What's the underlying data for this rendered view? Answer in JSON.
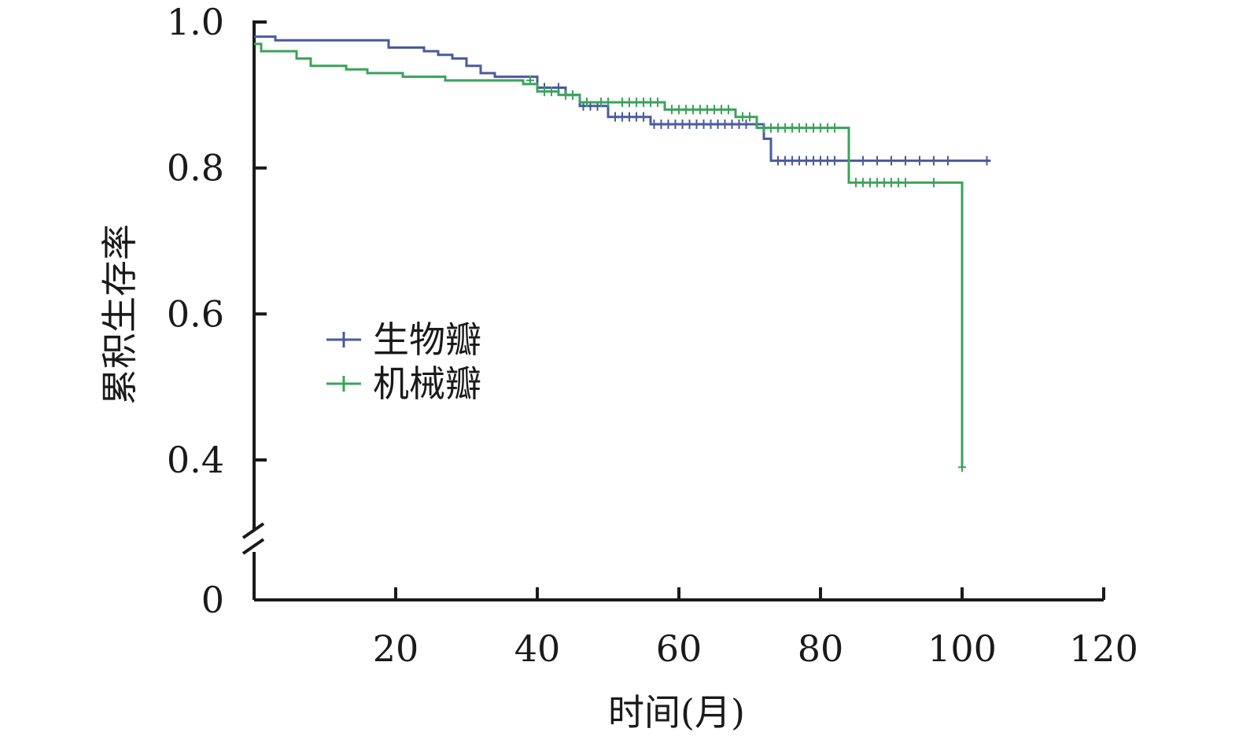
{
  "chart_data": {
    "type": "line",
    "title": "",
    "xlabel": "时间(月)",
    "ylabel": "累积生存率",
    "xlim": [
      0,
      120
    ],
    "ylim": [
      0,
      1.0
    ],
    "axis_break": true,
    "x_ticks": [
      20,
      40,
      60,
      80,
      100,
      120
    ],
    "x_tick_labels": [
      "20",
      "40",
      "60",
      "80",
      "100",
      "120"
    ],
    "y_ticks": [
      0,
      0.4,
      0.6,
      0.8,
      1.0
    ],
    "y_tick_labels": [
      "0",
      "0.4",
      "0.6",
      "0.8",
      "1.0"
    ],
    "grid": false,
    "legend_position": "center-left",
    "series": [
      {
        "name": "生物瓣",
        "color": "#4a5a9e",
        "steps": [
          [
            0,
            0.98
          ],
          [
            3,
            0.98
          ],
          [
            3,
            0.975
          ],
          [
            19,
            0.975
          ],
          [
            19,
            0.965
          ],
          [
            24,
            0.965
          ],
          [
            24,
            0.96
          ],
          [
            26,
            0.96
          ],
          [
            26,
            0.955
          ],
          [
            28,
            0.955
          ],
          [
            28,
            0.95
          ],
          [
            30,
            0.95
          ],
          [
            30,
            0.94
          ],
          [
            32,
            0.94
          ],
          [
            32,
            0.93
          ],
          [
            34,
            0.93
          ],
          [
            34,
            0.925
          ],
          [
            40,
            0.925
          ],
          [
            40,
            0.91
          ],
          [
            44,
            0.91
          ],
          [
            44,
            0.9
          ],
          [
            46,
            0.9
          ],
          [
            46,
            0.885
          ],
          [
            50,
            0.885
          ],
          [
            50,
            0.87
          ],
          [
            56,
            0.87
          ],
          [
            56,
            0.86
          ],
          [
            72,
            0.86
          ],
          [
            72,
            0.84
          ],
          [
            73,
            0.84
          ],
          [
            73,
            0.81
          ],
          [
            104,
            0.81
          ]
        ],
        "censored": [
          [
            41,
            0.91
          ],
          [
            43,
            0.91
          ],
          [
            45,
            0.9
          ],
          [
            46.5,
            0.885
          ],
          [
            47.5,
            0.885
          ],
          [
            48.5,
            0.885
          ],
          [
            51,
            0.87
          ],
          [
            52,
            0.87
          ],
          [
            53,
            0.87
          ],
          [
            54,
            0.87
          ],
          [
            55,
            0.87
          ],
          [
            56.5,
            0.86
          ],
          [
            57.5,
            0.86
          ],
          [
            58.5,
            0.86
          ],
          [
            59.5,
            0.86
          ],
          [
            60.5,
            0.86
          ],
          [
            61.5,
            0.86
          ],
          [
            62.5,
            0.86
          ],
          [
            63.5,
            0.86
          ],
          [
            64.5,
            0.86
          ],
          [
            65.5,
            0.86
          ],
          [
            66.5,
            0.86
          ],
          [
            67.5,
            0.86
          ],
          [
            68.5,
            0.86
          ],
          [
            69.5,
            0.86
          ],
          [
            74,
            0.81
          ],
          [
            75,
            0.81
          ],
          [
            76,
            0.81
          ],
          [
            77,
            0.81
          ],
          [
            78,
            0.81
          ],
          [
            79,
            0.81
          ],
          [
            80,
            0.81
          ],
          [
            81,
            0.81
          ],
          [
            82,
            0.81
          ],
          [
            84,
            0.81
          ],
          [
            86,
            0.81
          ],
          [
            88,
            0.81
          ],
          [
            90,
            0.81
          ],
          [
            92,
            0.81
          ],
          [
            94,
            0.81
          ],
          [
            96,
            0.81
          ],
          [
            98,
            0.81
          ],
          [
            103.5,
            0.81
          ]
        ]
      },
      {
        "name": "机械瓣",
        "color": "#3aa35a",
        "steps": [
          [
            0,
            0.97
          ],
          [
            1,
            0.97
          ],
          [
            1,
            0.96
          ],
          [
            6,
            0.96
          ],
          [
            6,
            0.95
          ],
          [
            8,
            0.95
          ],
          [
            8,
            0.94
          ],
          [
            13,
            0.94
          ],
          [
            13,
            0.935
          ],
          [
            16,
            0.935
          ],
          [
            16,
            0.93
          ],
          [
            21,
            0.93
          ],
          [
            21,
            0.925
          ],
          [
            27,
            0.925
          ],
          [
            27,
            0.92
          ],
          [
            38,
            0.92
          ],
          [
            38,
            0.915
          ],
          [
            40,
            0.915
          ],
          [
            40,
            0.905
          ],
          [
            43,
            0.905
          ],
          [
            43,
            0.9
          ],
          [
            46,
            0.9
          ],
          [
            46,
            0.89
          ],
          [
            48,
            0.89
          ],
          [
            48,
            0.89
          ],
          [
            58,
            0.89
          ],
          [
            58,
            0.88
          ],
          [
            68,
            0.88
          ],
          [
            68,
            0.87
          ],
          [
            71,
            0.87
          ],
          [
            71,
            0.855
          ],
          [
            84,
            0.855
          ],
          [
            84,
            0.78
          ],
          [
            100,
            0.78
          ],
          [
            100,
            0.39
          ]
        ],
        "censored": [
          [
            39,
            0.92
          ],
          [
            41,
            0.905
          ],
          [
            42,
            0.905
          ],
          [
            44,
            0.9
          ],
          [
            45,
            0.9
          ],
          [
            47,
            0.89
          ],
          [
            49,
            0.89
          ],
          [
            50,
            0.89
          ],
          [
            52,
            0.89
          ],
          [
            53,
            0.89
          ],
          [
            54,
            0.89
          ],
          [
            55,
            0.89
          ],
          [
            56,
            0.89
          ],
          [
            57,
            0.89
          ],
          [
            59,
            0.88
          ],
          [
            60,
            0.88
          ],
          [
            61,
            0.88
          ],
          [
            62,
            0.88
          ],
          [
            63,
            0.88
          ],
          [
            64,
            0.88
          ],
          [
            65,
            0.88
          ],
          [
            66,
            0.88
          ],
          [
            67,
            0.88
          ],
          [
            69,
            0.87
          ],
          [
            70,
            0.87
          ],
          [
            72,
            0.855
          ],
          [
            73,
            0.855
          ],
          [
            74,
            0.855
          ],
          [
            75,
            0.855
          ],
          [
            76,
            0.855
          ],
          [
            77,
            0.855
          ],
          [
            78,
            0.855
          ],
          [
            79,
            0.855
          ],
          [
            80,
            0.855
          ],
          [
            81,
            0.855
          ],
          [
            82,
            0.855
          ],
          [
            85,
            0.78
          ],
          [
            86,
            0.78
          ],
          [
            87,
            0.78
          ],
          [
            88,
            0.78
          ],
          [
            89,
            0.78
          ],
          [
            90,
            0.78
          ],
          [
            91,
            0.78
          ],
          [
            92,
            0.78
          ],
          [
            96,
            0.78
          ],
          [
            100,
            0.39
          ]
        ]
      }
    ]
  }
}
